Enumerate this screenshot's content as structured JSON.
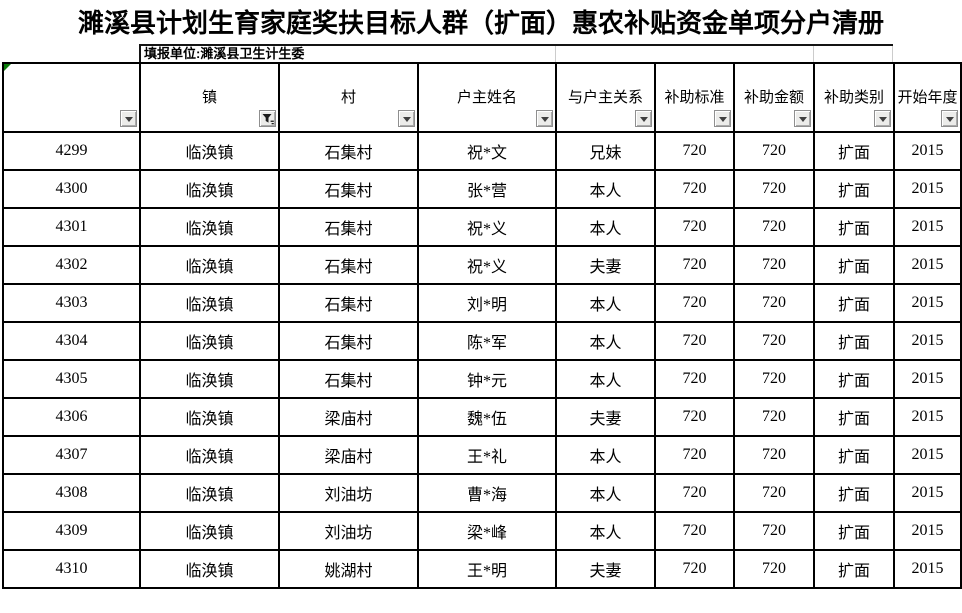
{
  "title": "濉溪县计划生育家庭奖扶目标人群（扩面）惠农补贴资金单项分户清册",
  "subtitle": "填报单位:濉溪县卫生计生委",
  "table": {
    "columns": [
      {
        "key": "id",
        "label": "",
        "filter": "dropdown"
      },
      {
        "key": "town",
        "label": "镇",
        "filter": "funnel"
      },
      {
        "key": "village",
        "label": "村",
        "filter": "dropdown"
      },
      {
        "key": "householder-name",
        "label": "户主姓名",
        "filter": "dropdown"
      },
      {
        "key": "relation",
        "label": "与户主关系",
        "filter": "dropdown"
      },
      {
        "key": "subsidy-standard",
        "label": "补助标准",
        "filter": "dropdown"
      },
      {
        "key": "subsidy-amount",
        "label": "补助金额",
        "filter": "dropdown"
      },
      {
        "key": "subsidy-type",
        "label": "补助类别",
        "filter": "dropdown"
      },
      {
        "key": "start-year",
        "label": "开始年度",
        "filter": "dropdown"
      }
    ],
    "rows": [
      [
        "4299",
        "临涣镇",
        "石集村",
        "祝*文",
        "兄妹",
        "720",
        "720",
        "扩面",
        "2015"
      ],
      [
        "4300",
        "临涣镇",
        "石集村",
        "张*营",
        "本人",
        "720",
        "720",
        "扩面",
        "2015"
      ],
      [
        "4301",
        "临涣镇",
        "石集村",
        "祝*义",
        "本人",
        "720",
        "720",
        "扩面",
        "2015"
      ],
      [
        "4302",
        "临涣镇",
        "石集村",
        "祝*义",
        "夫妻",
        "720",
        "720",
        "扩面",
        "2015"
      ],
      [
        "4303",
        "临涣镇",
        "石集村",
        "刘*明",
        "本人",
        "720",
        "720",
        "扩面",
        "2015"
      ],
      [
        "4304",
        "临涣镇",
        "石集村",
        "陈*军",
        "本人",
        "720",
        "720",
        "扩面",
        "2015"
      ],
      [
        "4305",
        "临涣镇",
        "石集村",
        "钟*元",
        "本人",
        "720",
        "720",
        "扩面",
        "2015"
      ],
      [
        "4306",
        "临涣镇",
        "梁庙村",
        "魏*伍",
        "夫妻",
        "720",
        "720",
        "扩面",
        "2015"
      ],
      [
        "4307",
        "临涣镇",
        "梁庙村",
        "王*礼",
        "本人",
        "720",
        "720",
        "扩面",
        "2015"
      ],
      [
        "4308",
        "临涣镇",
        "刘油坊",
        "曹*海",
        "本人",
        "720",
        "720",
        "扩面",
        "2015"
      ],
      [
        "4309",
        "临涣镇",
        "刘油坊",
        "梁*峰",
        "本人",
        "720",
        "720",
        "扩面",
        "2015"
      ],
      [
        "4310",
        "临涣镇",
        "姚湖村",
        "王*明",
        "夫妻",
        "720",
        "720",
        "扩面",
        "2015"
      ]
    ]
  },
  "icons": {
    "filter_dropdown": "chevron-down-icon",
    "filter_active": "filter-funnel-icon"
  },
  "colors": {
    "cell_border": "#000000",
    "filter_button_bg": "#ececea",
    "filter_button_border": "#8f8f8f",
    "error_indicator_green": "#0b7d0b",
    "faint_gridline": "#cccccc",
    "text": "#000000",
    "background": "#ffffff"
  }
}
